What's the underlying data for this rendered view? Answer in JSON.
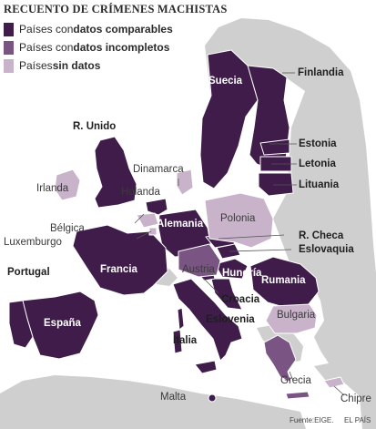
{
  "title": "RECUENTO DE CRÍMENES MACHISTAS",
  "legend": [
    {
      "prefix": "Países con ",
      "bold": "datos comparables",
      "color": "#3f1c4a"
    },
    {
      "prefix": "Países con ",
      "bold": "datos incompletos",
      "color": "#7a5583"
    },
    {
      "prefix": "Países ",
      "bold": "sin datos",
      "color": "#c8b3ca"
    }
  ],
  "countries": {
    "finlandia": "Finlandia",
    "suecia": "Suecia",
    "estonia": "Estonia",
    "letonia": "Letonia",
    "lituania": "Lituania",
    "runido": "R. Unido",
    "irlanda": "Irlanda",
    "dinamarca": "Dinamarca",
    "holanda": "Holanda",
    "belgica": "Bélgica",
    "luxemburgo": "Luxemburgo",
    "alemania": "Alemania",
    "polonia": "Polonia",
    "rcheca": "R. Checa",
    "eslovaquia": "Eslovaquia",
    "portugal": "Portugal",
    "francia": "Francia",
    "austria": "Austria",
    "hungria": "Hungría",
    "rumania": "Rumania",
    "croacia": "Croacia",
    "espana": "España",
    "eslovenia": "Eslovenia",
    "bulgaria": "Bulgaria",
    "italia": "Italia",
    "grecia": "Grecia",
    "malta": "Malta",
    "chipre": "Chipre"
  },
  "source": "Fuente:EIGE.",
  "brand": "EL PAÍS"
}
